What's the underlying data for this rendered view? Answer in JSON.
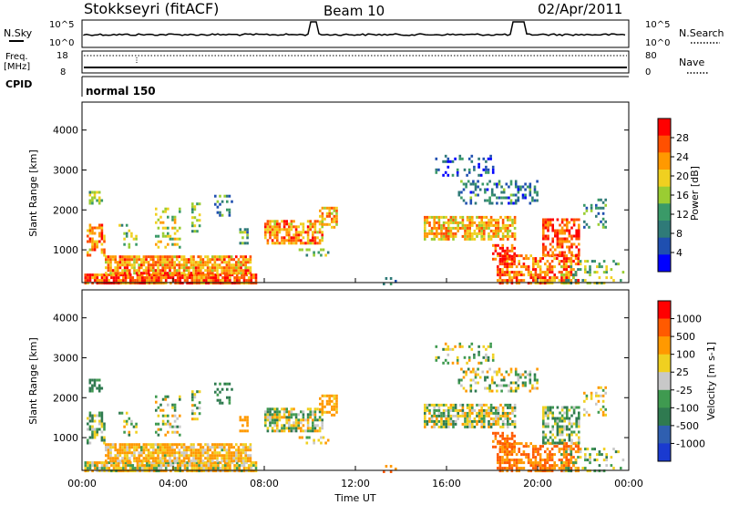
{
  "header": {
    "station": "Stokkseyri (fitACF)",
    "beam": "Beam 10",
    "date": "02/Apr/2011"
  },
  "noise_panel": {
    "left_label": "N.Sky",
    "right_label": "N.Search",
    "left_ticks": [
      "10^5",
      "10^0"
    ],
    "right_ticks": [
      "10^5",
      "10^0"
    ]
  },
  "freq_panel": {
    "left_label_1": "Freq.",
    "left_label_2": "[MHz]",
    "right_label": "Nave",
    "left_ticks": [
      "18",
      "8"
    ],
    "right_ticks": [
      "80",
      "0"
    ]
  },
  "cpid": {
    "label": "CPID",
    "mode": "normal 150"
  },
  "chart_data": [
    {
      "type": "heatmap",
      "panel": "power",
      "ylabel": "Slant Range [km]",
      "xlabel": "Time UT",
      "y_ticks": [
        "4000",
        "3000",
        "2000",
        "1000"
      ],
      "x_ticks": [
        "00:00",
        "04:00",
        "08:00",
        "12:00",
        "16:00",
        "20:00",
        "00:00"
      ],
      "xlim_hours": [
        0,
        24
      ],
      "ylim_km": [
        180,
        4700
      ],
      "colorbar": {
        "label": "Power [dB]",
        "ticks": [
          "28",
          "24",
          "20",
          "16",
          "12",
          "8",
          "4"
        ],
        "range": [
          0,
          30
        ],
        "colors": [
          "#0000ff",
          "#1f4fb0",
          "#2f7a78",
          "#3a9a68",
          "#9acd32",
          "#f0d020",
          "#ff9900",
          "#ff5000",
          "#ff0000"
        ]
      }
    },
    {
      "type": "heatmap",
      "panel": "velocity",
      "ylabel": "Slant Range [km]",
      "xlabel": "Time UT",
      "y_ticks": [
        "4000",
        "3000",
        "2000",
        "1000"
      ],
      "x_ticks": [
        "00:00",
        "04:00",
        "08:00",
        "12:00",
        "16:00",
        "20:00",
        "00:00"
      ],
      "xlim_hours": [
        0,
        24
      ],
      "ylim_km": [
        180,
        4700
      ],
      "colorbar": {
        "label": "Velocity [m s-1]",
        "ticks": [
          "1000",
          "500",
          "100",
          "25",
          "-25",
          "-100",
          "-500",
          "-1000"
        ],
        "range": [
          -1000,
          1000
        ],
        "colors": [
          "#1a3ad0",
          "#2f5fb0",
          "#2f7a50",
          "#3f9a50",
          "#c8c8c8",
          "#f0d020",
          "#ff9900",
          "#ff5a00",
          "#ff0000"
        ]
      }
    }
  ]
}
